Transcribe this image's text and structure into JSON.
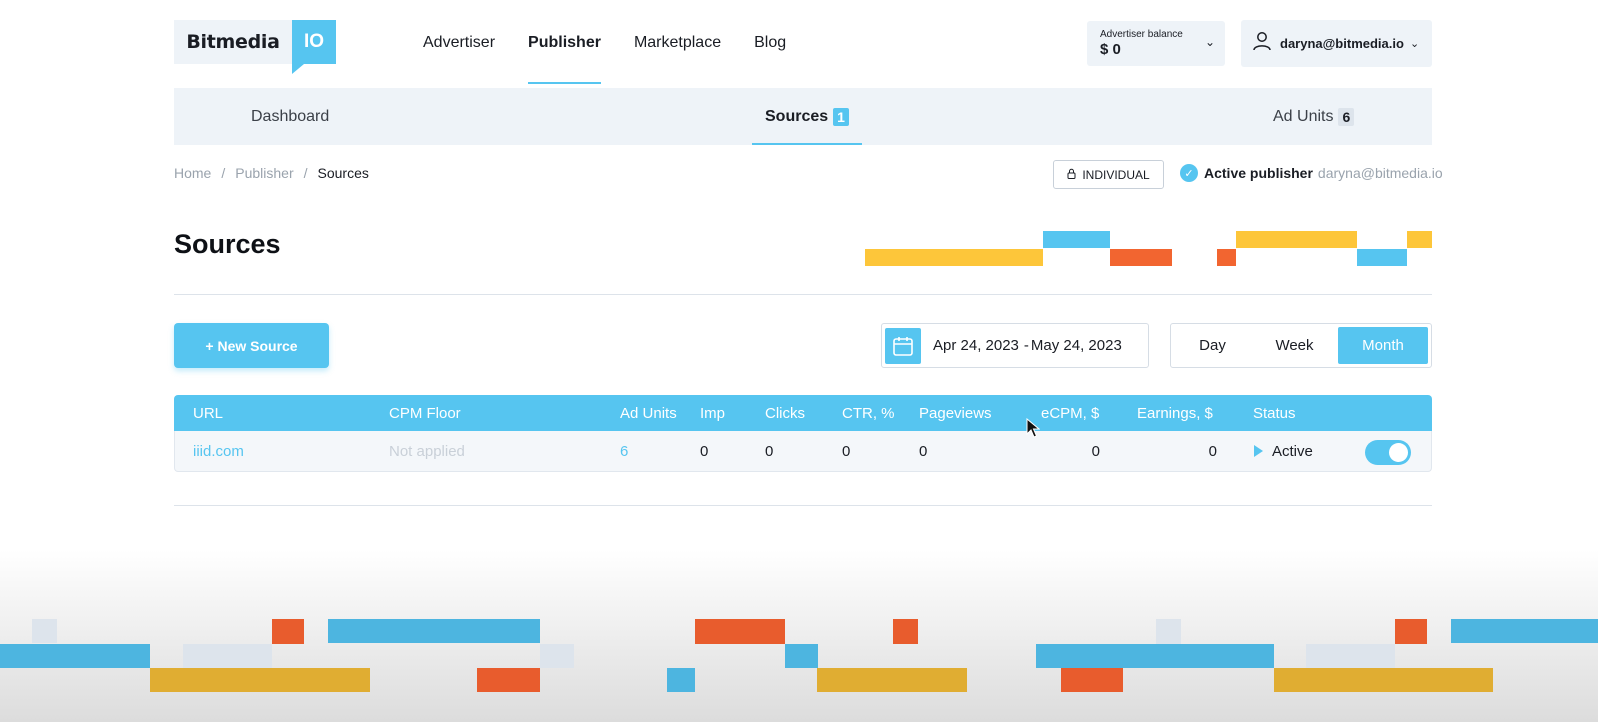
{
  "brand": {
    "name": "Bitmedia",
    "suffix": "IO"
  },
  "nav": {
    "items": [
      {
        "label": "Advertiser",
        "active": false
      },
      {
        "label": "Publisher",
        "active": true
      },
      {
        "label": "Marketplace",
        "active": false
      },
      {
        "label": "Blog",
        "active": false
      }
    ]
  },
  "balance": {
    "label": "Advertiser balance",
    "value": "$ 0"
  },
  "user": {
    "email": "daryna@bitmedia.io"
  },
  "subtabs": {
    "dashboard": {
      "label": "Dashboard"
    },
    "sources": {
      "label": "Sources",
      "count": "1"
    },
    "ad_units": {
      "label": "Ad Units",
      "count": "6"
    }
  },
  "breadcrumb": {
    "home": "Home",
    "publisher": "Publisher",
    "current": "Sources",
    "separator": "/"
  },
  "account": {
    "type_label": "INDIVIDUAL",
    "status_label": "Active publisher",
    "status_email": "daryna@bitmedia.io"
  },
  "page": {
    "title": "Sources"
  },
  "actions": {
    "new_source": "+ New Source"
  },
  "date_range": {
    "start": "Apr 24, 2023",
    "end": "May 24, 2023",
    "separator": "-"
  },
  "period": {
    "day": "Day",
    "week": "Week",
    "month": "Month",
    "selected": "Month"
  },
  "table": {
    "columns": [
      "URL",
      "CPM Floor",
      "Ad Units",
      "Imp",
      "Clicks",
      "CTR, %",
      "Pageviews",
      "eCPM, $",
      "Earnings, $",
      "Status"
    ],
    "rows": [
      {
        "url": "iiid.com",
        "cpm_floor": "Not applied",
        "ad_units": "6",
        "imp": "0",
        "clicks": "0",
        "ctr": "0",
        "pageviews": "0",
        "ecpm": "0",
        "earnings": "0",
        "status": "Active",
        "enabled": true
      }
    ]
  },
  "colors": {
    "accent": "#56c5f0",
    "yellow": "#fdc63a",
    "orange": "#f26530",
    "light_bg": "#eef3f8"
  }
}
